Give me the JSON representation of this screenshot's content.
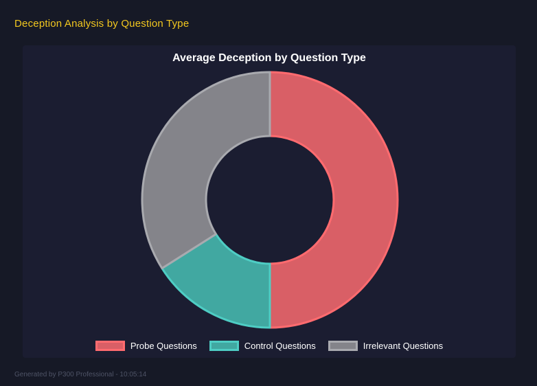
{
  "header": {
    "title": "Deception Analysis by Question Type",
    "accent_color": "#f2c71f"
  },
  "chart_data": {
    "type": "pie",
    "subtype": "donut",
    "title": "Average Deception by Question Type",
    "categories": [
      "Probe Questions",
      "Control Questions",
      "Irrelevant Questions"
    ],
    "values_percent": [
      50,
      16,
      34
    ],
    "start_angle_deg_from_top": 0,
    "direction": "clockwise",
    "cutout_ratio": 0.5,
    "legend_position": "bottom",
    "background_panel": "#1b1d31",
    "segments": [
      {
        "label": "Probe Questions",
        "percent": 50,
        "fill": "#d95f66",
        "border": "#ff6b6f"
      },
      {
        "label": "Control Questions",
        "percent": 16,
        "fill": "#41a8a1",
        "border": "#4ecdc4"
      },
      {
        "label": "Irrelevant Questions",
        "percent": 34,
        "fill": "#84848a",
        "border": "#a9aaaf"
      }
    ]
  },
  "footer": {
    "text": "Generated by P300 Professional - 10:05:14"
  }
}
